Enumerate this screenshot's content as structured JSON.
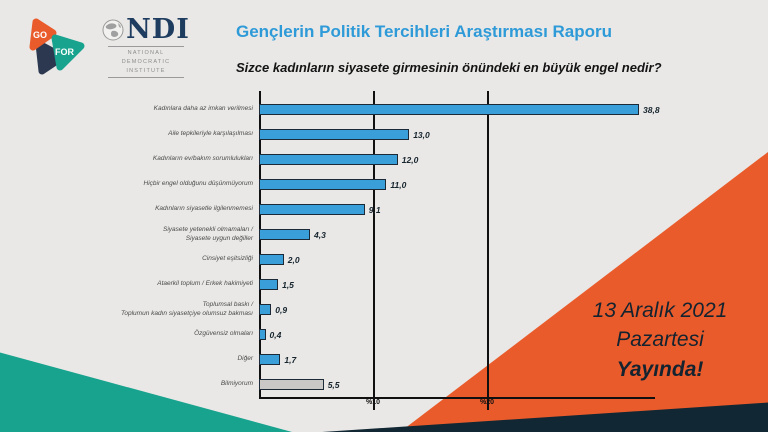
{
  "slide": {
    "background_color": "#E9E8E6"
  },
  "logos": {
    "gofor": {
      "go_label": "GO",
      "for_label": "FOR",
      "orange": "#E95B2B",
      "teal": "#17A38E",
      "navy": "#2B3850"
    },
    "ndi": {
      "acronym": "NDI",
      "caption_lines": [
        "NATIONAL",
        "DEMOCRATIC",
        "INSTITUTE"
      ]
    }
  },
  "header": {
    "title": "Gençlerin Politik Tercihleri Araştırması Raporu",
    "question": "Sizce kadınların siyasete girmesinin önündeki en büyük engel nedir?"
  },
  "chart_data": {
    "type": "bar",
    "orientation": "horizontal",
    "title": "Sizce kadınların siyasete girmesinin önündeki en büyük engel nedir?",
    "categories": [
      "Kadınlara daha az imkan verilmesi",
      "Aile tepkileriyle karşılaşılması",
      "Kadınların ev/bakım sorumlulukları",
      "Hiçbir engel olduğunu düşünmüyorum",
      "Kadınların siyasetle ilgilenmemesi",
      "Siyasete yetenekli olmamaları /\nSiyasete uygun değiller",
      "Cinsiyet eşitsizliği",
      "Ataerkil toplum / Erkek hakimiyeti",
      "Toplumsal baskı /\nToplumun kadın siyasetçiye olumsuz bakması",
      "Özgüvensiz olmaları",
      "Diğer",
      "Bilmiyorum"
    ],
    "values": [
      38.8,
      13.0,
      12.0,
      11.0,
      9.1,
      4.3,
      2.0,
      1.5,
      0.9,
      0.4,
      1.7,
      5.5
    ],
    "value_labels": [
      "38,8",
      "13,0",
      "12,0",
      "11,0",
      "9,1",
      "4,3",
      "2,0",
      "1,5",
      "0,9",
      "0,4",
      "1,7",
      "5,5"
    ],
    "bar_fill_colors": [
      "#3A9ED9",
      "#3A9ED9",
      "#3A9ED9",
      "#3A9ED9",
      "#3A9ED9",
      "#3A9ED9",
      "#3A9ED9",
      "#3A9ED9",
      "#3A9ED9",
      "#3A9ED9",
      "#3A9ED9",
      "#C9C8C6"
    ],
    "x_ticks": [
      "%10",
      "%20"
    ],
    "x_tick_values": [
      10,
      20
    ],
    "xlim": [
      0,
      40
    ],
    "grid": "vertical",
    "legend": "none",
    "bar_border_color": "#1B2A36",
    "default_bar_color": "#3A9ED9",
    "unknown_bar_color": "#C9C8C6"
  },
  "announcement": {
    "date": "13 Aralık 2021",
    "day": "Pazartesi",
    "status": "Yayında!",
    "background_color": "#E95B2B",
    "text_color": "#13232F"
  }
}
